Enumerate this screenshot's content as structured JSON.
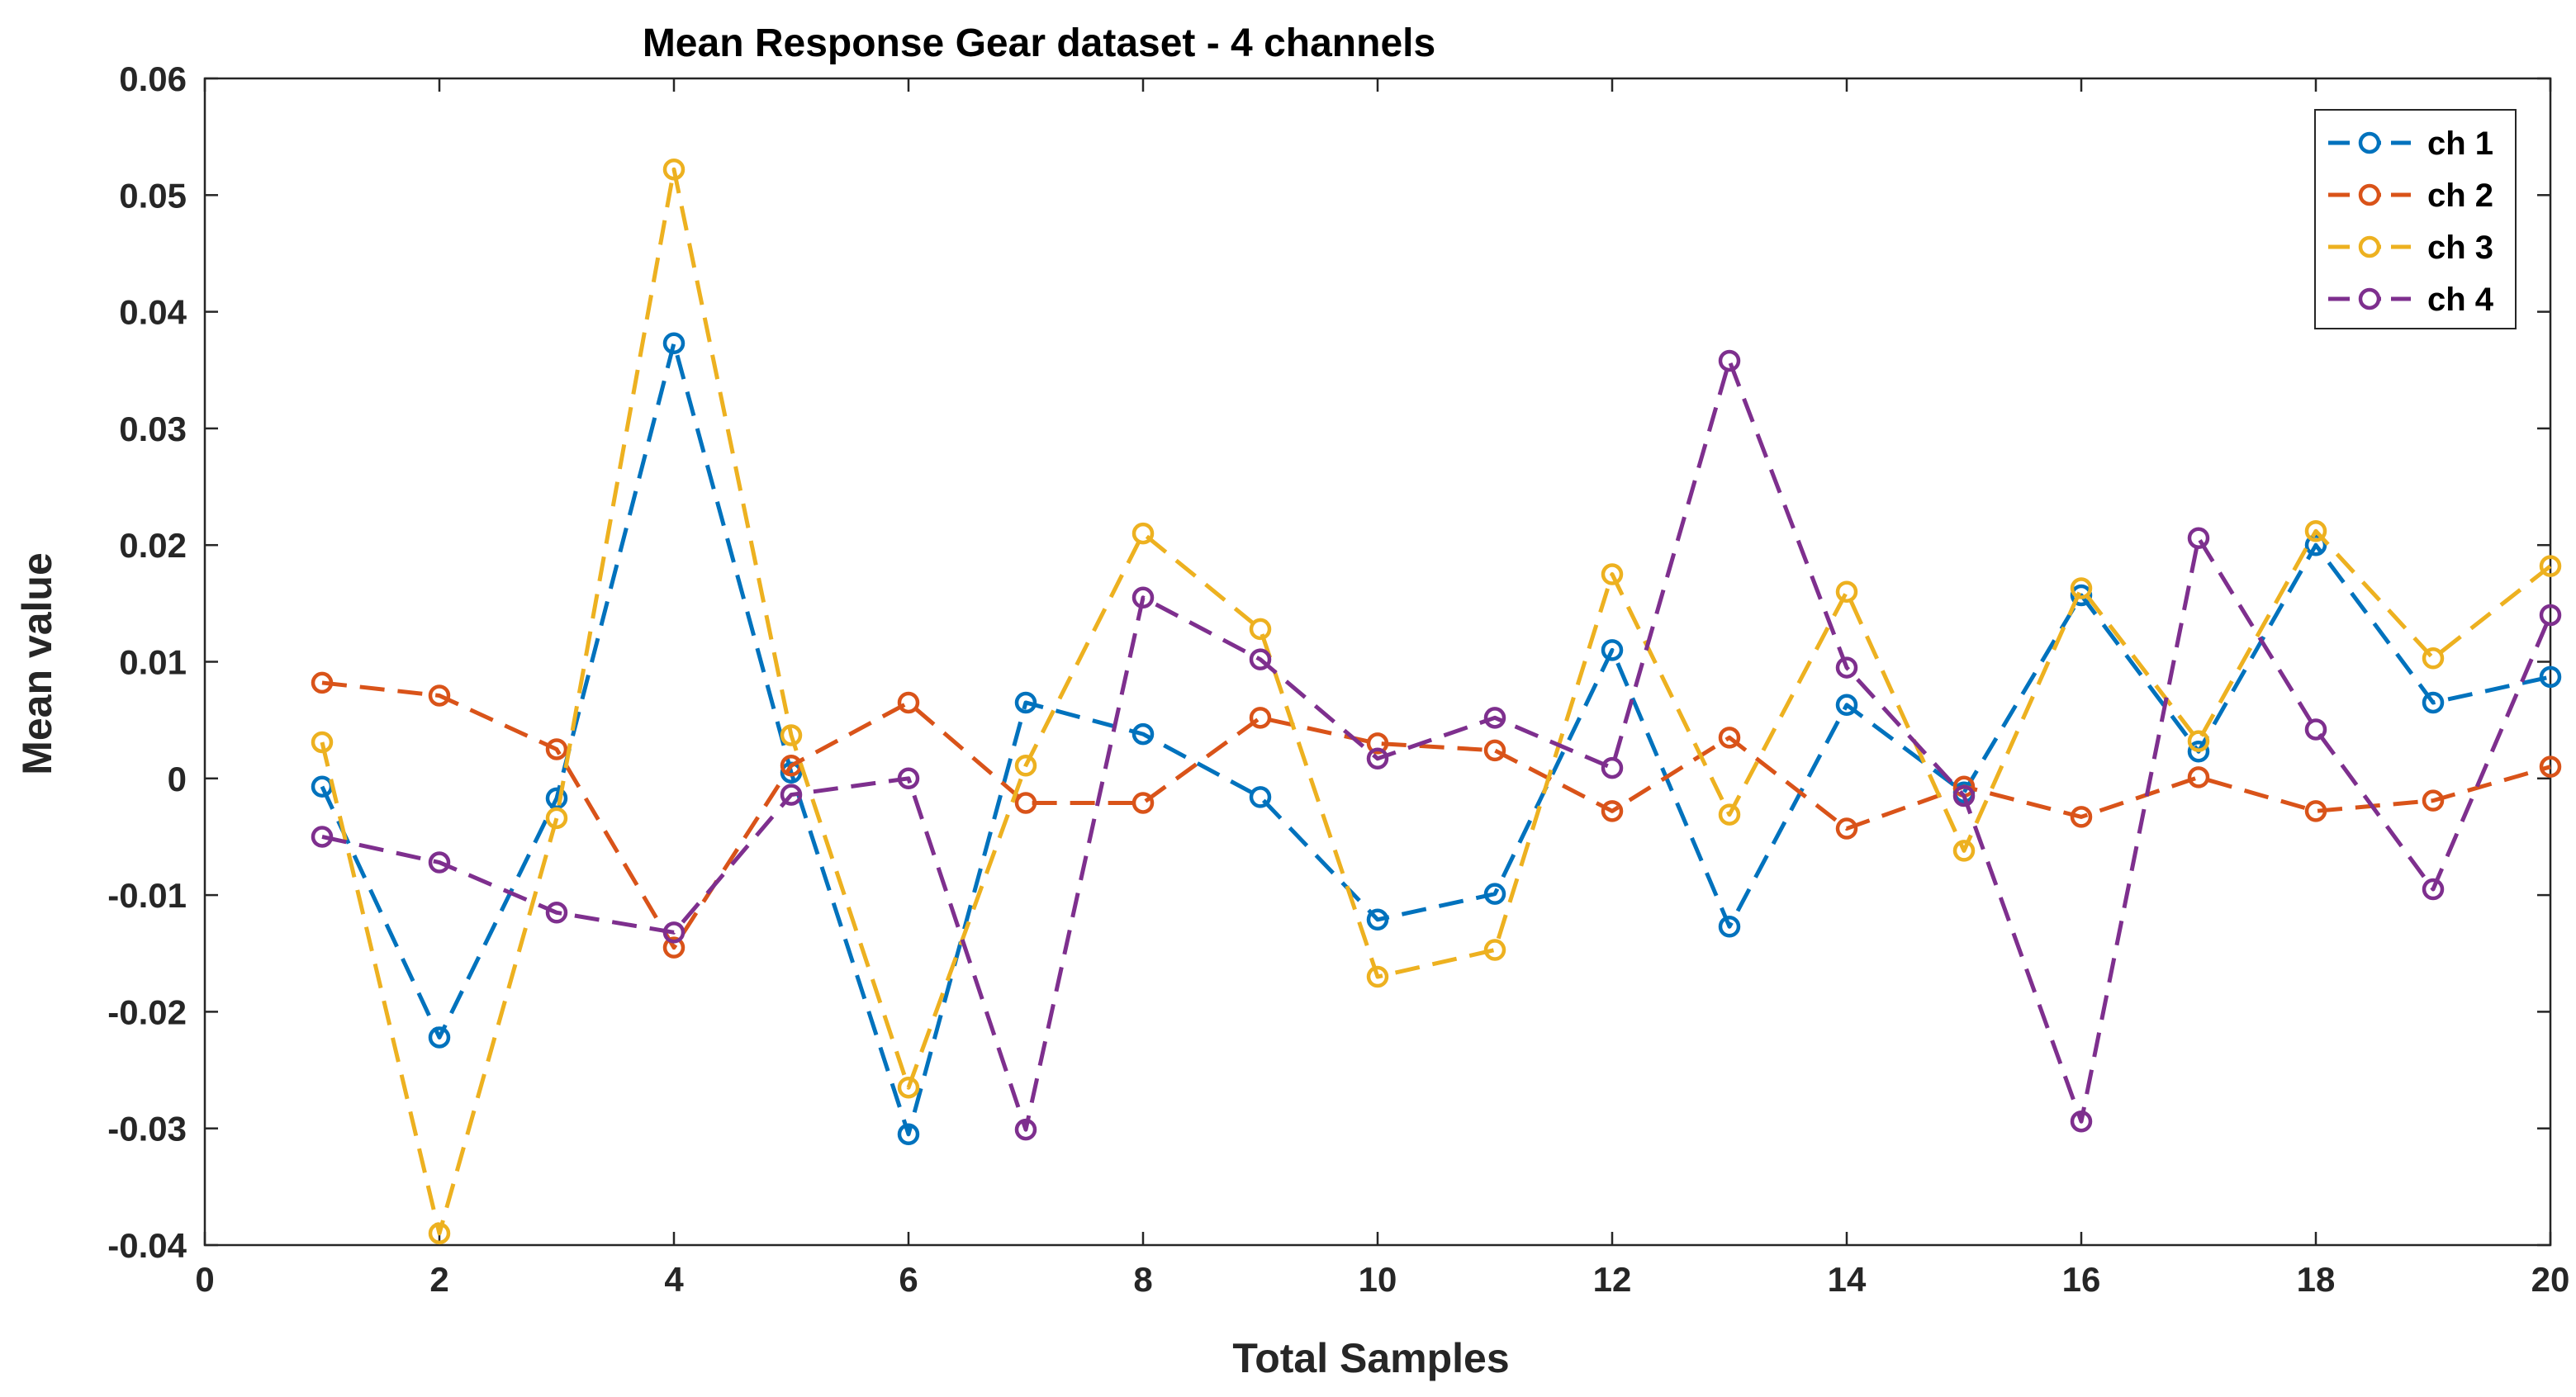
{
  "chart_data": {
    "type": "line",
    "title": "Mean Response Gear dataset - 4 channels",
    "xlabel": "Total Samples",
    "ylabel": "Mean value",
    "xlim": [
      0,
      20
    ],
    "ylim": [
      -0.04,
      0.06
    ],
    "xticks": [
      0,
      2,
      4,
      6,
      8,
      10,
      12,
      14,
      16,
      18,
      20
    ],
    "yticks": [
      -0.04,
      -0.03,
      -0.02,
      -0.01,
      0,
      0.01,
      0.02,
      0.03,
      0.04,
      0.05,
      0.06
    ],
    "xtick_labels": [
      "0",
      "2",
      "4",
      "6",
      "8",
      "10",
      "12",
      "14",
      "16",
      "18",
      "20"
    ],
    "ytick_labels": [
      "-0.04",
      "-0.03",
      "-0.02",
      "-0.01",
      "0",
      "0.01",
      "0.02",
      "0.03",
      "0.04",
      "0.05",
      "0.06"
    ],
    "grid": false,
    "legend_position": "top-right",
    "line_style": "dashed",
    "marker": "circle",
    "x": [
      1,
      2,
      3,
      4,
      5,
      6,
      7,
      8,
      9,
      10,
      11,
      12,
      13,
      14,
      15,
      16,
      17,
      18,
      19,
      20
    ],
    "series": [
      {
        "name": "ch 1",
        "color": "#0072BD",
        "values": [
          -0.0007,
          -0.0222,
          -0.0017,
          0.0373,
          0.0005,
          -0.0305,
          0.0065,
          0.0038,
          -0.0016,
          -0.0121,
          -0.0099,
          0.011,
          -0.0127,
          0.0063,
          -0.0012,
          0.0157,
          0.0023,
          0.02,
          0.0065,
          0.0087
        ]
      },
      {
        "name": "ch 2",
        "color": "#D95319",
        "values": [
          0.0082,
          0.0071,
          0.0025,
          -0.0145,
          0.0011,
          0.0065,
          -0.0021,
          -0.0021,
          0.0052,
          0.003,
          0.0024,
          -0.0028,
          0.0035,
          -0.0043,
          -0.0007,
          -0.0033,
          0.0001,
          -0.0028,
          -0.0019,
          0.001
        ]
      },
      {
        "name": "ch 3",
        "color": "#EDB120",
        "values": [
          0.0031,
          -0.039,
          -0.0034,
          0.0522,
          0.0037,
          -0.0265,
          0.0011,
          0.021,
          0.0128,
          -0.017,
          -0.0147,
          0.0175,
          -0.0031,
          0.016,
          -0.0062,
          0.0163,
          0.0032,
          0.0212,
          0.0103,
          0.0182
        ]
      },
      {
        "name": "ch 4",
        "color": "#7E2F8E",
        "values": [
          -0.005,
          -0.0072,
          -0.0115,
          -0.0132,
          -0.0014,
          0.0,
          -0.0301,
          0.0155,
          0.0102,
          0.0017,
          0.0052,
          0.0009,
          0.0358,
          0.0095,
          -0.0015,
          -0.0294,
          0.0206,
          0.0042,
          -0.0095,
          0.014
        ]
      }
    ]
  }
}
